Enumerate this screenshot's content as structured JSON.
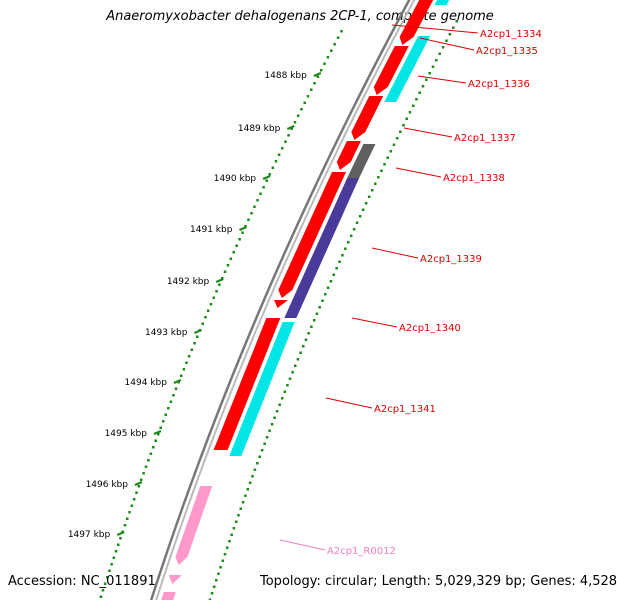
{
  "title": "Anaeromyxobacter dehalogenans 2CP-1, complete genome",
  "footer": {
    "accession": "Accession: NC_011891",
    "summary": "Topology: circular; Length: 5,029,329 bp; Genes: 4,528"
  },
  "scale_labels": [
    "1488 kbp",
    "1489 kbp",
    "1490 kbp",
    "1491 kbp",
    "1492 kbp",
    "1493 kbp",
    "1494 kbp",
    "1495 kbp",
    "1496 kbp",
    "1497 kbp"
  ],
  "gene_labels": [
    {
      "text": "A2cp1_1334",
      "color": "#e00000"
    },
    {
      "text": "A2cp1_1335",
      "color": "#e00000"
    },
    {
      "text": "A2cp1_1336",
      "color": "#e00000"
    },
    {
      "text": "A2cp1_1337",
      "color": "#e00000"
    },
    {
      "text": "A2cp1_1338",
      "color": "#e00000"
    },
    {
      "text": "A2cp1_1339",
      "color": "#e00000"
    },
    {
      "text": "A2cp1_1340",
      "color": "#e00000"
    },
    {
      "text": "A2cp1_1341",
      "color": "#e00000"
    },
    {
      "text": "A2cp1_R0012",
      "color": "#f080c0"
    }
  ],
  "colors": {
    "cds": "#ff0000",
    "orf_cyan": "#00e5e5",
    "orf_gray": "#606060",
    "orf_purple": "#4a3a9a",
    "rna": "#ff99cc",
    "backbone": "#888888",
    "ticks": "#1a8a1a"
  }
}
